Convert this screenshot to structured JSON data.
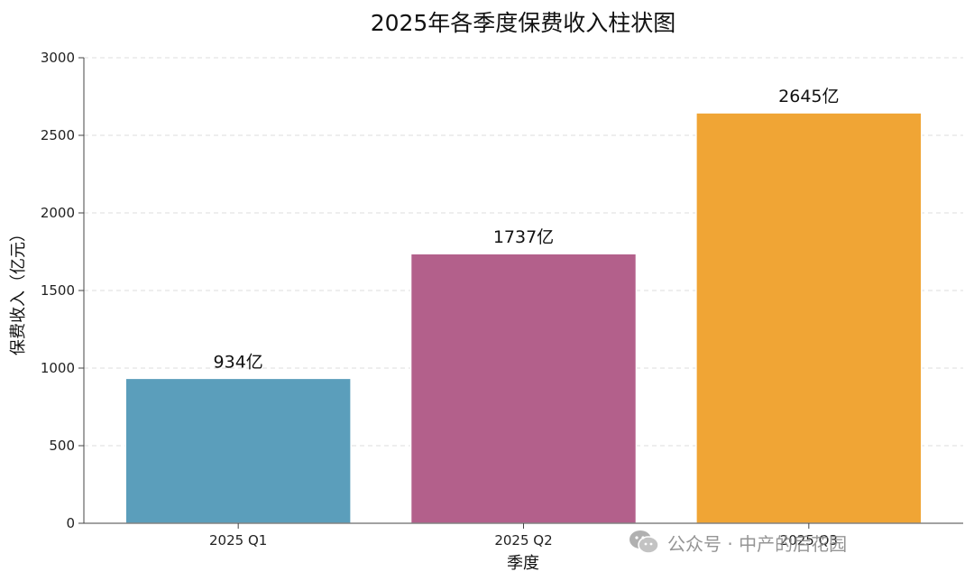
{
  "chart_data": {
    "type": "bar",
    "title": "2025年各季度保费收入柱状图",
    "xlabel": "季度",
    "ylabel": "保费收入（亿元）",
    "categories": [
      "2025 Q1",
      "2025 Q2",
      "2025 Q3"
    ],
    "values": [
      934,
      1737,
      2645
    ],
    "data_labels": [
      "934亿",
      "1737亿",
      "2645亿"
    ],
    "ylim": [
      0,
      3000
    ],
    "yticks": [
      0,
      500,
      1000,
      1500,
      2000,
      2500,
      3000
    ],
    "colors": [
      "#5b9ebb",
      "#b3608b",
      "#f0a535"
    ],
    "grid": true
  },
  "watermark": {
    "text": "公众号 · 中产的后花园",
    "icon": "wechat-icon"
  }
}
